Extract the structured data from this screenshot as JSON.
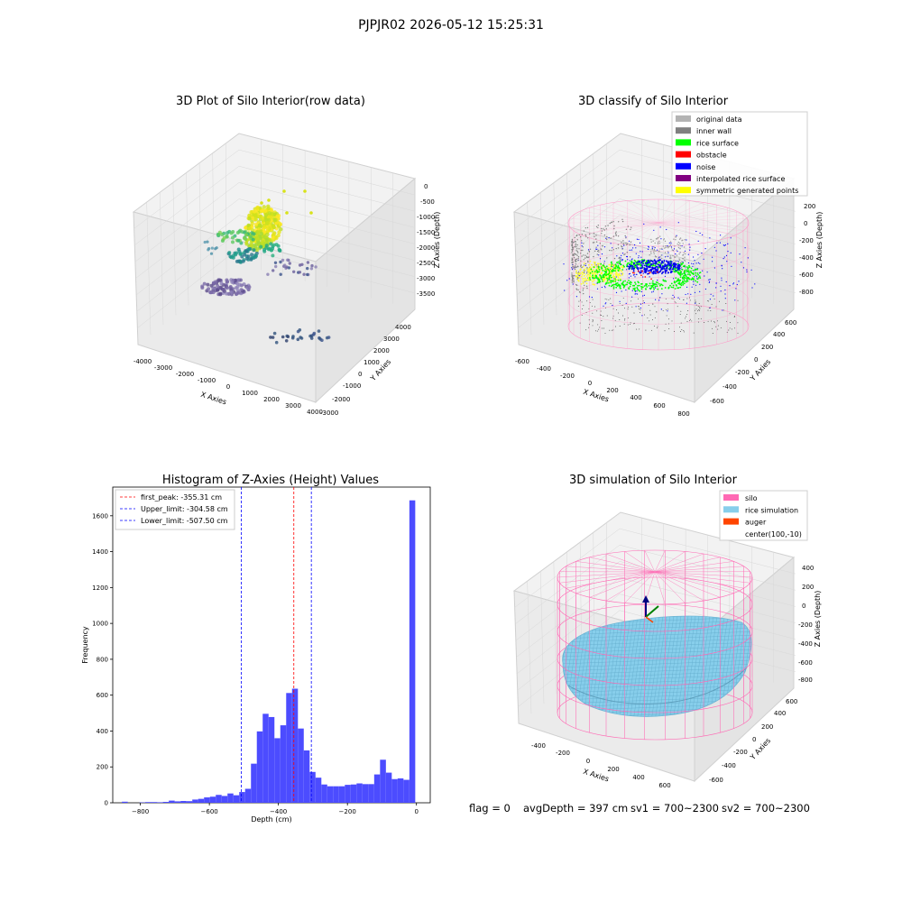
{
  "suptitle": "PJPJR02 2026-05-12 15:25:31",
  "footer": {
    "flag": "flag = 0",
    "avg": "avgDepth = 397 cm",
    "sv1": "sv1 = 700~2300",
    "sv2": "sv2 = 700~2300"
  },
  "chart_data": [
    {
      "type": "scatter",
      "title": "3D Plot of Silo Interior(row data)",
      "xlabel": "X Axies",
      "ylabel": "Y Axies",
      "zlabel": "Z Axies (Depth)",
      "x_ticks": [
        "-4000",
        "-3000",
        "-2000",
        "-1000",
        "0",
        "1000",
        "2000",
        "3000",
        "4000"
      ],
      "y_ticks": [
        "-3000",
        "-2000",
        "-1000",
        "0",
        "1000",
        "2000",
        "3000",
        "4000"
      ],
      "z_ticks": [
        "0",
        "-500",
        "-1000",
        "-1500",
        "-2000",
        "-2500",
        "-3000",
        "-3500"
      ],
      "xlim": [
        -4000,
        4000
      ],
      "ylim": [
        -3000,
        4000
      ],
      "zlim": [
        -3800,
        0
      ],
      "colormap": "viridis (depth)",
      "clusters": [
        {
          "desc": "yellow dense blob",
          "x": [
            -600,
            600
          ],
          "y": [
            -400,
            400
          ],
          "z": [
            -1500,
            -900
          ],
          "color": "#e6e619"
        },
        {
          "desc": "green band",
          "x": [
            -2000,
            1200
          ],
          "y": [
            -800,
            1600
          ],
          "z": [
            -2500,
            -1600
          ],
          "color": "#35b779"
        },
        {
          "desc": "purple grid",
          "x": [
            -3500,
            -1000
          ],
          "y": [
            -500,
            1500
          ],
          "z": [
            -3500,
            -2800
          ],
          "color": "#6d5c9e"
        },
        {
          "desc": "dark blue scatter",
          "x": [
            1500,
            4000
          ],
          "y": [
            -2500,
            500
          ],
          "z": [
            -3800,
            -3200
          ],
          "color": "#31527d"
        }
      ]
    },
    {
      "type": "scatter",
      "title": "3D classify of Silo Interior",
      "xlabel": "X Axies",
      "ylabel": "Y Axies",
      "zlabel": "Z Axies (Depth)",
      "x_ticks": [
        "-600",
        "-400",
        "-200",
        "0",
        "200",
        "400",
        "600",
        "800"
      ],
      "y_ticks": [
        "-600",
        "-400",
        "-200",
        "0",
        "200",
        "400",
        "600"
      ],
      "z_ticks": [
        "200",
        "0",
        "-200",
        "-400",
        "-600",
        "-800"
      ],
      "xlim": [
        -650,
        850
      ],
      "ylim": [
        -700,
        700
      ],
      "zlim": [
        -950,
        300
      ],
      "legend": [
        {
          "label": "original data",
          "color": "#b3b3b3"
        },
        {
          "label": "inner wall",
          "color": "#808080"
        },
        {
          "label": "rice surface",
          "color": "#00ff00"
        },
        {
          "label": "obstacle",
          "color": "#ff0000"
        },
        {
          "label": "noise",
          "color": "#0000ff"
        },
        {
          "label": "interpolated rice surface",
          "color": "#800080"
        },
        {
          "label": "symmetric generated points",
          "color": "#ffff00"
        }
      ],
      "legend_position": "upper right"
    },
    {
      "type": "bar",
      "title": "Histogram of Z-Axies (Height) Values",
      "xlabel": "Depth (cm)",
      "ylabel": "Frequency",
      "xlim": [
        -880,
        40
      ],
      "ylim": [
        0,
        1760
      ],
      "x_ticks": [
        -800,
        -600,
        -400,
        -200,
        0
      ],
      "y_ticks": [
        0,
        200,
        400,
        600,
        800,
        1000,
        1200,
        1400,
        1600
      ],
      "bar_color": "#4c4cff",
      "bin_width": 17,
      "bins": [
        {
          "x": -845,
          "value": 6
        },
        {
          "x": -828,
          "value": 0
        },
        {
          "x": -811,
          "value": 0
        },
        {
          "x": -794,
          "value": 2
        },
        {
          "x": -777,
          "value": 4
        },
        {
          "x": -760,
          "value": 4
        },
        {
          "x": -743,
          "value": 3
        },
        {
          "x": -726,
          "value": 5
        },
        {
          "x": -709,
          "value": 12
        },
        {
          "x": -692,
          "value": 8
        },
        {
          "x": -675,
          "value": 10
        },
        {
          "x": -658,
          "value": 9
        },
        {
          "x": -641,
          "value": 18
        },
        {
          "x": -624,
          "value": 22
        },
        {
          "x": -607,
          "value": 30
        },
        {
          "x": -590,
          "value": 34
        },
        {
          "x": -573,
          "value": 44
        },
        {
          "x": -556,
          "value": 38
        },
        {
          "x": -539,
          "value": 52
        },
        {
          "x": -522,
          "value": 42
        },
        {
          "x": -505,
          "value": 60
        },
        {
          "x": -488,
          "value": 78
        },
        {
          "x": -471,
          "value": 218
        },
        {
          "x": -454,
          "value": 398
        },
        {
          "x": -437,
          "value": 496
        },
        {
          "x": -420,
          "value": 478
        },
        {
          "x": -403,
          "value": 360
        },
        {
          "x": -386,
          "value": 432
        },
        {
          "x": -369,
          "value": 612
        },
        {
          "x": -352,
          "value": 636
        },
        {
          "x": -335,
          "value": 414
        },
        {
          "x": -318,
          "value": 292
        },
        {
          "x": -301,
          "value": 172
        },
        {
          "x": -284,
          "value": 140
        },
        {
          "x": -267,
          "value": 102
        },
        {
          "x": -250,
          "value": 92
        },
        {
          "x": -233,
          "value": 92
        },
        {
          "x": -216,
          "value": 92
        },
        {
          "x": -199,
          "value": 100
        },
        {
          "x": -182,
          "value": 102
        },
        {
          "x": -165,
          "value": 108
        },
        {
          "x": -148,
          "value": 104
        },
        {
          "x": -131,
          "value": 104
        },
        {
          "x": -114,
          "value": 158
        },
        {
          "x": -97,
          "value": 240
        },
        {
          "x": -80,
          "value": 168
        },
        {
          "x": -63,
          "value": 132
        },
        {
          "x": -46,
          "value": 136
        },
        {
          "x": -29,
          "value": 128
        },
        {
          "x": -12,
          "value": 1686
        }
      ],
      "vlines": [
        {
          "label": "first_peak: -355.31 cm",
          "x": -355.31,
          "color": "#ff0000"
        },
        {
          "label": "Upper_limit: -304.58 cm",
          "x": -304.58,
          "color": "#0000ff"
        },
        {
          "label": "Lower_limit: -507.50 cm",
          "x": -507.5,
          "color": "#0000ff"
        }
      ],
      "legend_position": "upper left"
    },
    {
      "type": "surface",
      "title": "3D simulation of Silo Interior",
      "xlabel": "X Axies",
      "ylabel": "Y Axies",
      "zlabel": "Z Axies (Depth)",
      "x_ticks": [
        "-400",
        "-200",
        "0",
        "200",
        "400",
        "600"
      ],
      "y_ticks": [
        "-600",
        "-400",
        "-200",
        "0",
        "200",
        "400",
        "600"
      ],
      "z_ticks": [
        "400",
        "200",
        "0",
        "-200",
        "-400",
        "-600",
        "-800"
      ],
      "xlim": [
        -520,
        720
      ],
      "ylim": [
        -700,
        700
      ],
      "zlim": [
        -950,
        450
      ],
      "legend": [
        {
          "label": "silo",
          "color": "#ff69b4"
        },
        {
          "label": "rice simulation",
          "color": "#87ceeb"
        },
        {
          "label": "auger",
          "color": "#ff4500"
        },
        {
          "label": "center(100,-10)",
          "color": ""
        }
      ],
      "legend_position": "upper right"
    }
  ]
}
